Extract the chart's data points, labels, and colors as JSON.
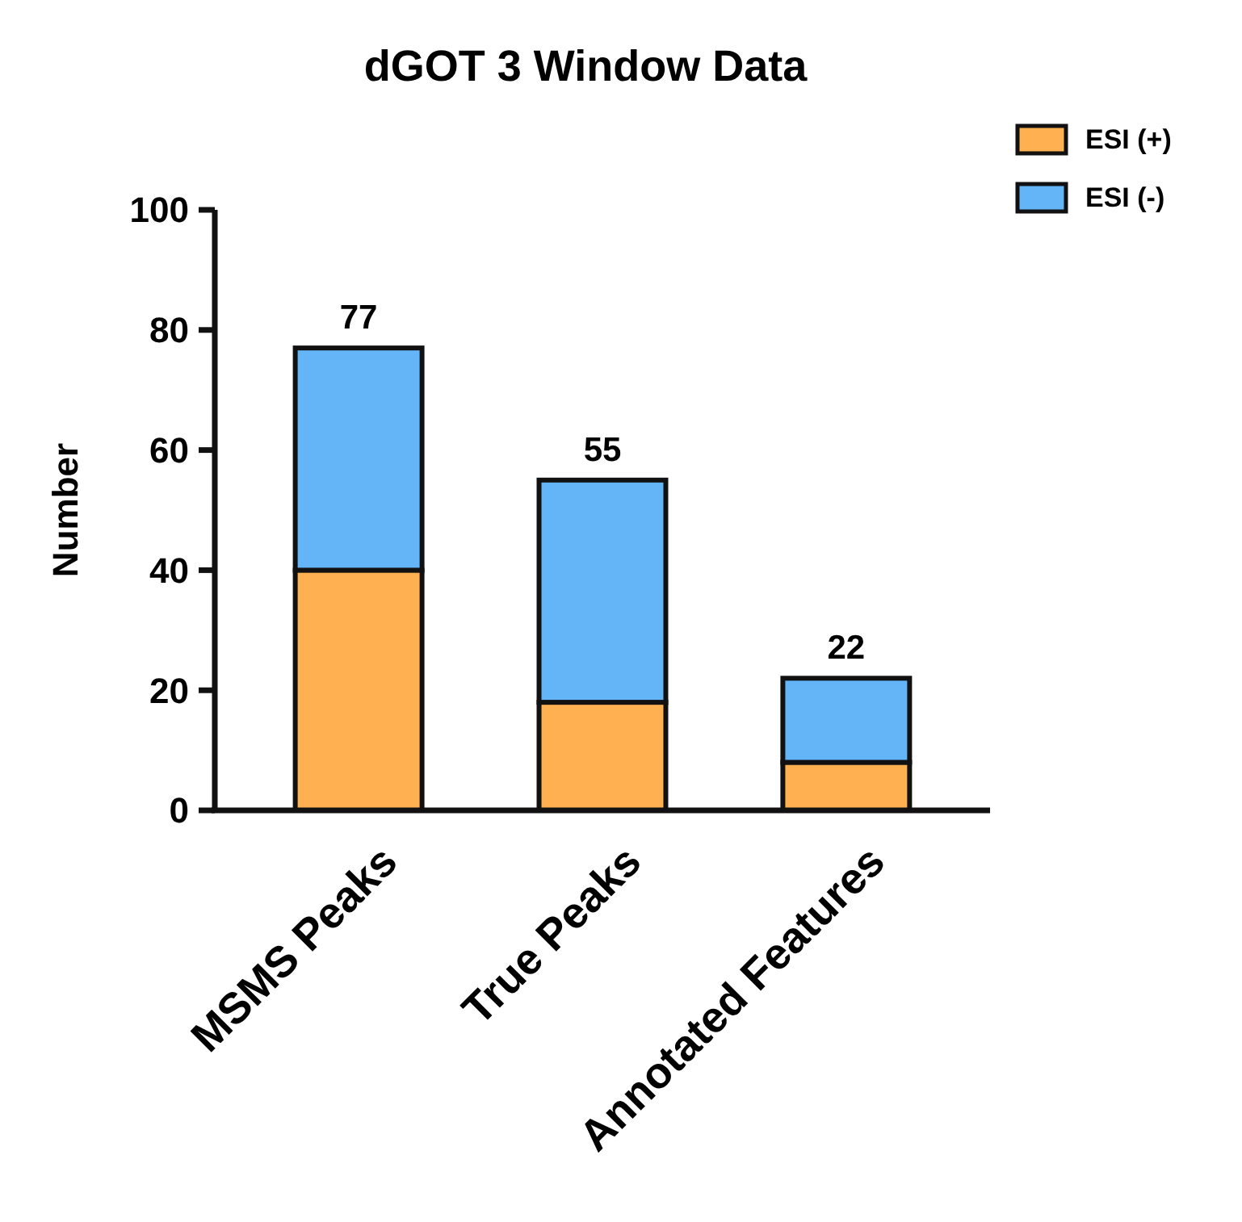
{
  "chart_data": {
    "type": "bar",
    "title": "dGOT 3 Window Data",
    "ylabel": "Number",
    "categories": [
      "MSMS Peaks",
      "True Peaks",
      "Annotated Features"
    ],
    "stacked": true,
    "series": [
      {
        "name": "ESI (+)",
        "color": "#ffb050",
        "values": [
          40,
          18,
          8
        ]
      },
      {
        "name": "ESI (-)",
        "color": "#63b5f7",
        "values": [
          37,
          37,
          14
        ]
      }
    ],
    "totals": [
      "77",
      "55",
      "22"
    ],
    "ylim": [
      0,
      100
    ],
    "yticks": [
      0,
      20,
      40,
      60,
      80,
      100
    ],
    "legend": "top right",
    "grid": false
  }
}
